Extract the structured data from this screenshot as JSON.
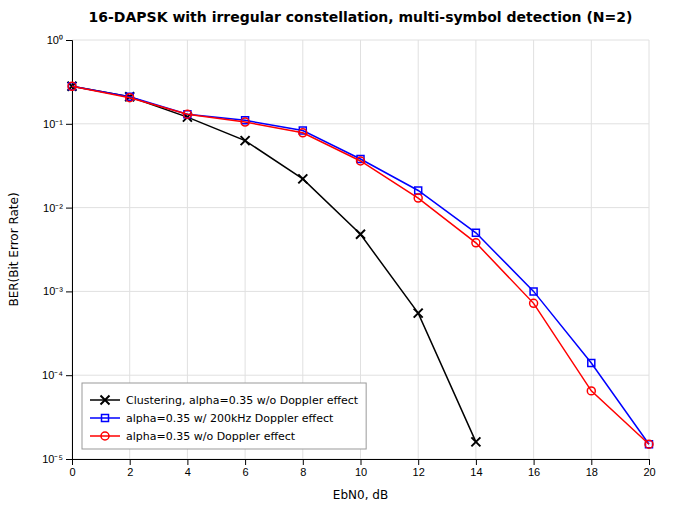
{
  "chart_data": {
    "type": "line",
    "title": "16-DAPSK with irregular constellation, multi-symbol detection (N=2)",
    "xlabel": "EbN0, dB",
    "ylabel": "BER(Bit Error Rate)",
    "log": "y",
    "xlim": [
      0,
      20
    ],
    "ylim": [
      1e-05,
      1
    ],
    "xticks": [
      0,
      2,
      4,
      6,
      8,
      10,
      12,
      14,
      16,
      18,
      20
    ],
    "yticks": [
      {
        "value": 1e-05,
        "label": "10⁻⁵"
      },
      {
        "value": 0.0001,
        "label": "10⁻⁴"
      },
      {
        "value": 0.001,
        "label": "10⁻³"
      },
      {
        "value": 0.01,
        "label": "10⁻²"
      },
      {
        "value": 0.1,
        "label": "10⁻¹"
      },
      {
        "value": 1,
        "label": "10⁰"
      }
    ],
    "grid": true,
    "legend": "lower left",
    "series": [
      {
        "name": "Clustering, alpha=0.35 w/o Doppler effect",
        "color": "#000000",
        "marker": "x",
        "x": [
          0,
          2,
          4,
          6,
          8,
          10,
          12,
          14
        ],
        "values": [
          0.28,
          0.21,
          0.12,
          0.063,
          0.022,
          0.0048,
          0.00055,
          1.6e-05
        ]
      },
      {
        "name": "alpha=0.35 w/ 200kHz Doppler effect",
        "color": "#0000ff",
        "marker": "square",
        "x": [
          0,
          2,
          4,
          6,
          8,
          10,
          12,
          14,
          16,
          18,
          20
        ],
        "values": [
          0.28,
          0.21,
          0.13,
          0.11,
          0.083,
          0.038,
          0.016,
          0.005,
          0.001,
          0.00014,
          1.5e-05
        ]
      },
      {
        "name": "alpha=0.35 w/o Doppler effect",
        "color": "#ff0000",
        "marker": "circle",
        "x": [
          0,
          2,
          4,
          6,
          8,
          10,
          12,
          14,
          16,
          18,
          20
        ],
        "values": [
          0.28,
          0.205,
          0.13,
          0.105,
          0.078,
          0.036,
          0.013,
          0.0038,
          0.00072,
          6.5e-05,
          1.5e-05
        ]
      }
    ]
  }
}
